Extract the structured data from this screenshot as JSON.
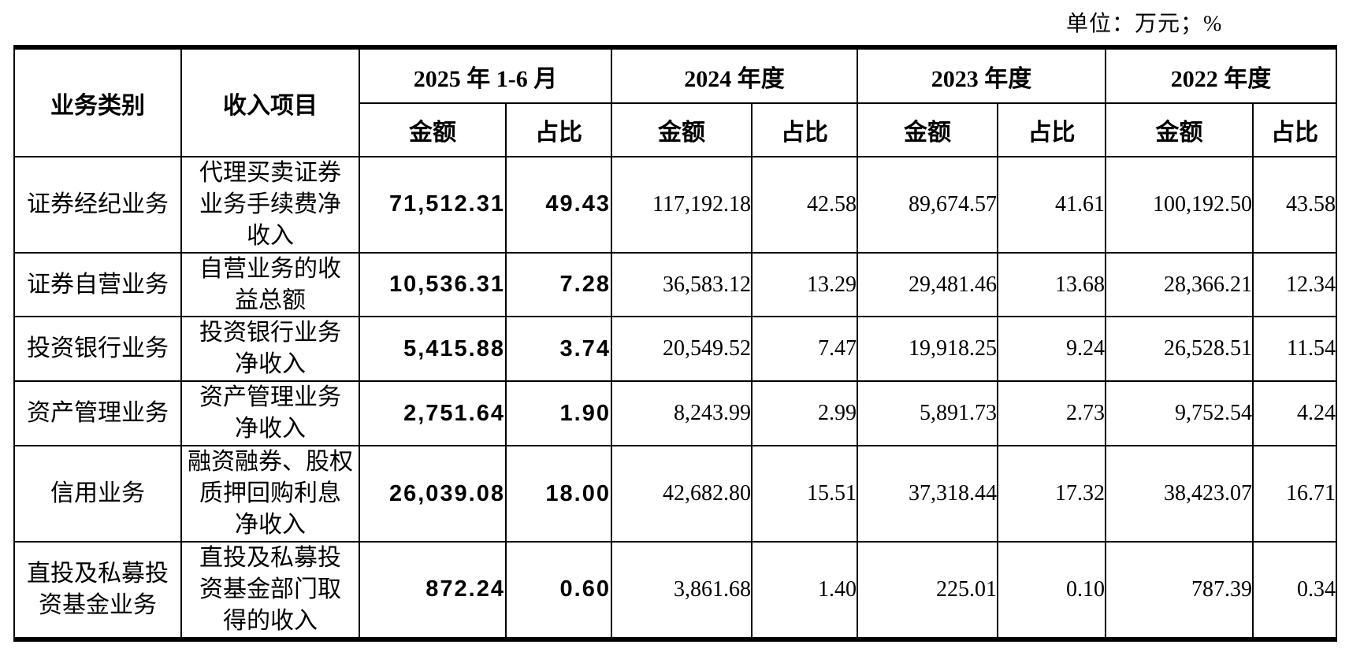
{
  "unit_label": "单位：万元；%",
  "table": {
    "header": {
      "business_category": "业务类别",
      "revenue_item": "收入项目",
      "amount": "金额",
      "ratio": "占比",
      "periods": [
        "2025 年 1-6 月",
        "2024 年度",
        "2023 年度",
        "2022 年度"
      ]
    },
    "rows": [
      {
        "category": "证券经纪业务",
        "item": "代理买卖证券\n业务手续费净\n收入",
        "values": [
          "71,512.31",
          "49.43",
          "117,192.18",
          "42.58",
          "89,674.57",
          "41.61",
          "100,192.50",
          "43.58"
        ]
      },
      {
        "category": "证券自营业务",
        "item": "自营业务的收\n益总额",
        "values": [
          "10,536.31",
          "7.28",
          "36,583.12",
          "13.29",
          "29,481.46",
          "13.68",
          "28,366.21",
          "12.34"
        ]
      },
      {
        "category": "投资银行业务",
        "item": "投资银行业务\n净收入",
        "values": [
          "5,415.88",
          "3.74",
          "20,549.52",
          "7.47",
          "19,918.25",
          "9.24",
          "26,528.51",
          "11.54"
        ]
      },
      {
        "category": "资产管理业务",
        "item": "资产管理业务\n净收入",
        "values": [
          "2,751.64",
          "1.90",
          "8,243.99",
          "2.99",
          "5,891.73",
          "2.73",
          "9,752.54",
          "4.24"
        ]
      },
      {
        "category": "信用业务",
        "item": "融资融券、股权\n质押回购利息\n净收入",
        "values": [
          "26,039.08",
          "18.00",
          "42,682.80",
          "15.51",
          "37,318.44",
          "17.32",
          "38,423.07",
          "16.71"
        ]
      },
      {
        "category": "直投及私募投\n资基金业务",
        "item": "直投及私募投\n资基金部门取\n得的收入",
        "values": [
          "872.24",
          "0.60",
          "3,861.68",
          "1.40",
          "225.01",
          "0.10",
          "787.39",
          "0.34"
        ]
      }
    ]
  }
}
